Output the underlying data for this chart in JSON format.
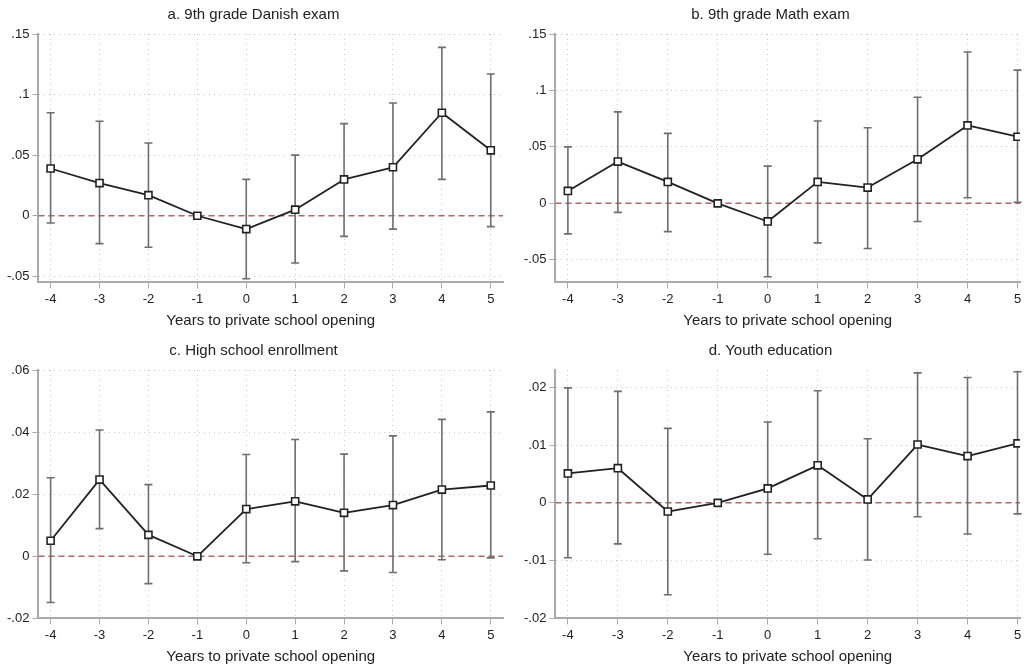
{
  "chart_data": [
    {
      "type": "line",
      "title": "a. 9th grade Danish exam",
      "xlabel": "Years to private school opening",
      "x": [
        -4,
        -3,
        -2,
        -1,
        0,
        1,
        2,
        3,
        4,
        5
      ],
      "xlim": [
        -4.25,
        5.25
      ],
      "xticks": [
        -4,
        -3,
        -2,
        -1,
        0,
        1,
        2,
        3,
        4,
        5
      ],
      "ylim": [
        -0.055,
        0.15
      ],
      "yticks": [
        {
          "value": -0.05,
          "label": "-.05"
        },
        {
          "value": 0,
          "label": "0"
        },
        {
          "value": 0.05,
          "label": ".05"
        },
        {
          "value": 0.1,
          "label": ".1"
        },
        {
          "value": 0.15,
          "label": ".15"
        }
      ],
      "grid": true,
      "legend": false,
      "marker": "square",
      "line_style": "solid",
      "ref_lines": [
        {
          "axis": "y",
          "value": 0,
          "color": "#b06868",
          "line_style": "dashed"
        }
      ],
      "series": [
        {
          "color": "#222222",
          "values": [
            0.039,
            0.027,
            0.017,
            0,
            -0.011,
            0.005,
            0.03,
            0.04,
            0.085,
            0.054
          ],
          "errors": [
            [
              -0.006,
              0.085
            ],
            [
              -0.023,
              0.078
            ],
            [
              -0.026,
              0.06
            ],
            null,
            [
              -0.052,
              0.03
            ],
            [
              -0.039,
              0.05
            ],
            [
              -0.017,
              0.076
            ],
            [
              -0.011,
              0.093
            ],
            [
              0.03,
              0.139
            ],
            [
              -0.009,
              0.117
            ]
          ]
        }
      ]
    },
    {
      "type": "line",
      "title": "b. 9th grade Math exam",
      "xlabel": "Years to private school opening",
      "x": [
        -4,
        -3,
        -2,
        -1,
        0,
        1,
        2,
        3,
        4,
        5
      ],
      "xlim": [
        -4.25,
        5.05
      ],
      "xticks": [
        -4,
        -3,
        -2,
        -1,
        0,
        1,
        2,
        3,
        4,
        5
      ],
      "ylim": [
        -0.07,
        0.15
      ],
      "yticks": [
        {
          "value": -0.05,
          "label": "-.05"
        },
        {
          "value": 0,
          "label": "0"
        },
        {
          "value": 0.05,
          "label": ".05"
        },
        {
          "value": 0.1,
          "label": ".1"
        },
        {
          "value": 0.15,
          "label": ".15"
        }
      ],
      "grid": true,
      "legend": false,
      "marker": "square",
      "line_style": "solid",
      "ref_lines": [
        {
          "axis": "y",
          "value": 0,
          "color": "#b06868",
          "line_style": "dashed"
        }
      ],
      "series": [
        {
          "color": "#222222",
          "values": [
            0.011,
            0.037,
            0.019,
            0,
            -0.016,
            0.019,
            0.014,
            0.039,
            0.069,
            0.059
          ],
          "errors": [
            [
              -0.027,
              0.05
            ],
            [
              -0.008,
              0.081
            ],
            [
              -0.025,
              0.062
            ],
            null,
            [
              -0.065,
              0.033
            ],
            [
              -0.035,
              0.073
            ],
            [
              -0.04,
              0.067
            ],
            [
              -0.016,
              0.094
            ],
            [
              0.005,
              0.134
            ],
            [
              0.001,
              0.118
            ]
          ]
        }
      ]
    },
    {
      "type": "line",
      "title": "c. High school enrollment",
      "xlabel": "Years to private school opening",
      "x": [
        -4,
        -3,
        -2,
        -1,
        0,
        1,
        2,
        3,
        4,
        5
      ],
      "xlim": [
        -4.25,
        5.25
      ],
      "xticks": [
        -4,
        -3,
        -2,
        -1,
        0,
        1,
        2,
        3,
        4,
        5
      ],
      "ylim": [
        -0.02,
        0.06
      ],
      "yticks": [
        {
          "value": -0.02,
          "label": "-.02"
        },
        {
          "value": 0,
          "label": "0"
        },
        {
          "value": 0.02,
          "label": ".02"
        },
        {
          "value": 0.04,
          "label": ".04"
        },
        {
          "value": 0.06,
          "label": ".06"
        }
      ],
      "grid": true,
      "legend": false,
      "marker": "square",
      "line_style": "solid",
      "ref_lines": [
        {
          "axis": "y",
          "value": 0,
          "color": "#b06868",
          "line_style": "dashed"
        }
      ],
      "series": [
        {
          "color": "#222222",
          "values": [
            0.005,
            0.0247,
            0.0069,
            0,
            0.0152,
            0.0177,
            0.014,
            0.0165,
            0.0215,
            0.0228
          ],
          "errors": [
            [
              -0.0149,
              0.0253
            ],
            [
              0.0089,
              0.0407
            ],
            [
              -0.0088,
              0.0231
            ],
            null,
            [
              -0.0021,
              0.0328
            ],
            [
              -0.0017,
              0.0376
            ],
            [
              -0.0047,
              0.0329
            ],
            [
              -0.0052,
              0.0388
            ],
            [
              -0.0011,
              0.0441
            ],
            [
              -0.0005,
              0.0465
            ]
          ]
        }
      ]
    },
    {
      "type": "line",
      "title": "d. Youth education",
      "xlabel": "Years to private school opening",
      "x": [
        -4,
        -3,
        -2,
        -1,
        0,
        1,
        2,
        3,
        4,
        5
      ],
      "xlim": [
        -4.25,
        5.05
      ],
      "xticks": [
        -4,
        -3,
        -2,
        -1,
        0,
        1,
        2,
        3,
        4,
        5
      ],
      "ylim": [
        -0.02,
        0.023
      ],
      "yticks": [
        {
          "value": -0.02,
          "label": "-.02"
        },
        {
          "value": -0.01,
          "label": "-.01"
        },
        {
          "value": 0,
          "label": "0"
        },
        {
          "value": 0.01,
          "label": ".01"
        },
        {
          "value": 0.02,
          "label": ".02"
        }
      ],
      "grid": true,
      "legend": false,
      "marker": "square",
      "line_style": "solid",
      "ref_lines": [
        {
          "axis": "y",
          "value": 0,
          "color": "#b06868",
          "line_style": "dashed"
        }
      ],
      "series": [
        {
          "color": "#222222",
          "values": [
            0.0051,
            0.006,
            -0.0015,
            0,
            0.0025,
            0.0065,
            0.0006,
            0.0101,
            0.0081,
            0.0103
          ],
          "errors": [
            [
              -0.0095,
              0.0199
            ],
            [
              -0.0071,
              0.0193
            ],
            [
              -0.0159,
              0.0129
            ],
            null,
            [
              -0.0089,
              0.014
            ],
            [
              -0.0062,
              0.0194
            ],
            [
              -0.0099,
              0.0111
            ],
            [
              -0.0024,
              0.0225
            ],
            [
              -0.0054,
              0.0217
            ],
            [
              -0.0019,
              0.0227
            ]
          ]
        }
      ]
    }
  ]
}
